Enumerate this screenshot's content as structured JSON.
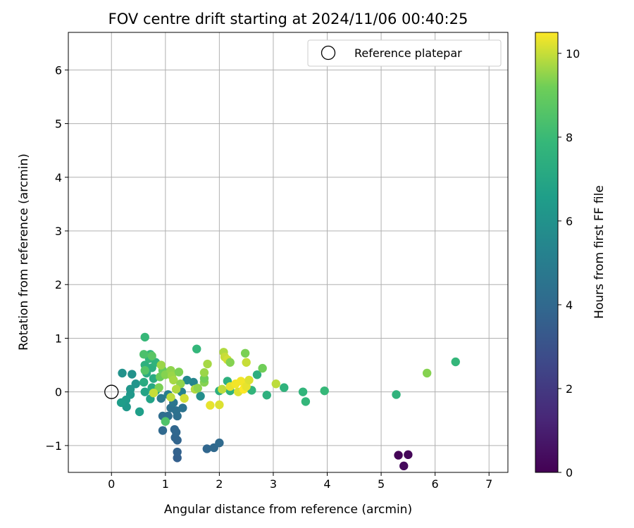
{
  "chart_data": {
    "type": "scatter",
    "title": "FOV centre drift starting at 2024/11/06 00:40:25",
    "xlabel": "Angular distance from reference (arcmin)",
    "ylabel": "Rotation from reference (arcmin)",
    "xlim": [
      -0.8,
      7.35
    ],
    "ylim": [
      -1.5,
      6.7
    ],
    "x_ticks": [
      0,
      1,
      2,
      3,
      4,
      5,
      6,
      7
    ],
    "y_ticks": [
      -1,
      0,
      1,
      2,
      3,
      4,
      5,
      6
    ],
    "grid": true,
    "legend": {
      "position": "top-right",
      "entries": [
        "Reference platepar"
      ]
    },
    "reference_point": {
      "label": "Reference platepar",
      "x": 0,
      "y": 0
    },
    "colorbar": {
      "label": "Hours from first FF file",
      "range": [
        0,
        10.5
      ],
      "ticks": [
        0,
        2,
        4,
        6,
        8,
        10
      ],
      "colormap": "viridis"
    },
    "points": [
      {
        "x": 5.32,
        "y": -1.18,
        "h": 0.1
      },
      {
        "x": 5.5,
        "y": -1.17,
        "h": 0.2
      },
      {
        "x": 5.42,
        "y": -1.38,
        "h": 0.3
      },
      {
        "x": 1.22,
        "y": -1.23,
        "h": 3.6
      },
      {
        "x": 1.22,
        "y": -1.12,
        "h": 3.7
      },
      {
        "x": 1.22,
        "y": -0.9,
        "h": 3.8
      },
      {
        "x": 1.18,
        "y": -0.85,
        "h": 3.8
      },
      {
        "x": 1.17,
        "y": -0.7,
        "h": 3.9
      },
      {
        "x": 1.2,
        "y": -0.75,
        "h": 3.9
      },
      {
        "x": 0.95,
        "y": -0.72,
        "h": 4.0
      },
      {
        "x": 1.77,
        "y": -1.06,
        "h": 3.9
      },
      {
        "x": 1.9,
        "y": -1.04,
        "h": 4.0
      },
      {
        "x": 2.0,
        "y": -0.95,
        "h": 4.1
      },
      {
        "x": 0.95,
        "y": -0.45,
        "h": 4.2
      },
      {
        "x": 1.05,
        "y": -0.45,
        "h": 4.2
      },
      {
        "x": 1.22,
        "y": -0.45,
        "h": 4.3
      },
      {
        "x": 1.1,
        "y": -0.3,
        "h": 4.4
      },
      {
        "x": 1.2,
        "y": -0.35,
        "h": 4.4
      },
      {
        "x": 1.32,
        "y": -0.3,
        "h": 4.5
      },
      {
        "x": 1.15,
        "y": -0.2,
        "h": 4.6
      },
      {
        "x": 0.92,
        "y": -0.12,
        "h": 4.8
      },
      {
        "x": 1.05,
        "y": -0.05,
        "h": 5.0
      },
      {
        "x": 1.3,
        "y": 0.0,
        "h": 5.2
      },
      {
        "x": 1.52,
        "y": 0.18,
        "h": 5.4
      },
      {
        "x": 1.4,
        "y": 0.22,
        "h": 5.6
      },
      {
        "x": 1.65,
        "y": -0.08,
        "h": 5.8
      },
      {
        "x": 0.2,
        "y": 0.35,
        "h": 6.0
      },
      {
        "x": 0.38,
        "y": 0.33,
        "h": 6.0
      },
      {
        "x": 0.45,
        "y": 0.15,
        "h": 6.1
      },
      {
        "x": 0.35,
        "y": 0.05,
        "h": 6.2
      },
      {
        "x": 0.35,
        "y": -0.05,
        "h": 6.3
      },
      {
        "x": 0.27,
        "y": -0.15,
        "h": 6.4
      },
      {
        "x": 0.28,
        "y": -0.28,
        "h": 6.3
      },
      {
        "x": 0.18,
        "y": -0.2,
        "h": 6.5
      },
      {
        "x": 0.52,
        "y": -0.37,
        "h": 6.6
      },
      {
        "x": 0.72,
        "y": -0.13,
        "h": 6.8
      },
      {
        "x": 0.62,
        "y": 0.0,
        "h": 6.9
      },
      {
        "x": 0.82,
        "y": 0.02,
        "h": 7.0
      },
      {
        "x": 0.75,
        "y": 0.08,
        "h": 7.1
      },
      {
        "x": 0.6,
        "y": 0.18,
        "h": 7.2
      },
      {
        "x": 0.78,
        "y": 0.25,
        "h": 7.2
      },
      {
        "x": 0.65,
        "y": 0.35,
        "h": 7.3
      },
      {
        "x": 0.75,
        "y": 0.45,
        "h": 7.4
      },
      {
        "x": 0.62,
        "y": 0.5,
        "h": 7.5
      },
      {
        "x": 0.82,
        "y": 0.55,
        "h": 7.6
      },
      {
        "x": 0.7,
        "y": 0.62,
        "h": 7.7
      },
      {
        "x": 0.72,
        "y": 0.7,
        "h": 7.8
      },
      {
        "x": 0.62,
        "y": 1.02,
        "h": 7.9
      },
      {
        "x": 1.58,
        "y": 0.8,
        "h": 7.8
      },
      {
        "x": 2.0,
        "y": 0.02,
        "h": 7.4
      },
      {
        "x": 2.15,
        "y": 0.2,
        "h": 7.5
      },
      {
        "x": 2.2,
        "y": 0.02,
        "h": 7.6
      },
      {
        "x": 2.7,
        "y": 0.32,
        "h": 7.4
      },
      {
        "x": 2.88,
        "y": -0.06,
        "h": 7.5
      },
      {
        "x": 2.6,
        "y": 0.03,
        "h": 7.7
      },
      {
        "x": 3.2,
        "y": 0.08,
        "h": 7.6
      },
      {
        "x": 3.55,
        "y": 0.0,
        "h": 7.7
      },
      {
        "x": 3.6,
        "y": -0.18,
        "h": 7.8
      },
      {
        "x": 3.95,
        "y": 0.02,
        "h": 7.9
      },
      {
        "x": 5.28,
        "y": -0.05,
        "h": 7.6
      },
      {
        "x": 6.38,
        "y": 0.56,
        "h": 7.8
      },
      {
        "x": 1.0,
        "y": -0.55,
        "h": 8.5
      },
      {
        "x": 0.6,
        "y": 0.7,
        "h": 8.4
      },
      {
        "x": 0.62,
        "y": 0.4,
        "h": 8.6
      },
      {
        "x": 0.75,
        "y": 0.67,
        "h": 8.7
      },
      {
        "x": 0.95,
        "y": 0.4,
        "h": 9.0
      },
      {
        "x": 0.9,
        "y": 0.28,
        "h": 9.1
      },
      {
        "x": 0.88,
        "y": 0.08,
        "h": 9.3
      },
      {
        "x": 1.0,
        "y": 0.32,
        "h": 9.4
      },
      {
        "x": 1.1,
        "y": 0.4,
        "h": 9.5
      },
      {
        "x": 1.12,
        "y": 0.3,
        "h": 9.6
      },
      {
        "x": 1.15,
        "y": 0.22,
        "h": 9.7
      },
      {
        "x": 1.25,
        "y": 0.37,
        "h": 9.3
      },
      {
        "x": 1.28,
        "y": 0.15,
        "h": 9.5
      },
      {
        "x": 1.2,
        "y": 0.05,
        "h": 9.8
      },
      {
        "x": 1.1,
        "y": -0.1,
        "h": 9.9
      },
      {
        "x": 0.92,
        "y": 0.5,
        "h": 9.6
      },
      {
        "x": 0.78,
        "y": -0.02,
        "h": 10.0
      },
      {
        "x": 1.35,
        "y": -0.12,
        "h": 10.1
      },
      {
        "x": 1.55,
        "y": 0.05,
        "h": 9.8
      },
      {
        "x": 1.6,
        "y": 0.07,
        "h": 9.5
      },
      {
        "x": 1.72,
        "y": 0.18,
        "h": 9.4
      },
      {
        "x": 1.72,
        "y": 0.25,
        "h": 9.2
      },
      {
        "x": 1.72,
        "y": 0.36,
        "h": 9.6
      },
      {
        "x": 1.78,
        "y": 0.52,
        "h": 9.7
      },
      {
        "x": 1.83,
        "y": -0.25,
        "h": 10.3
      },
      {
        "x": 2.0,
        "y": -0.24,
        "h": 10.2
      },
      {
        "x": 2.05,
        "y": 0.05,
        "h": 9.9
      },
      {
        "x": 2.08,
        "y": 0.74,
        "h": 9.8
      },
      {
        "x": 2.1,
        "y": 0.65,
        "h": 10.0
      },
      {
        "x": 2.15,
        "y": 0.6,
        "h": 10.1
      },
      {
        "x": 2.2,
        "y": 0.55,
        "h": 9.4
      },
      {
        "x": 2.2,
        "y": 0.1,
        "h": 10.3
      },
      {
        "x": 2.3,
        "y": 0.15,
        "h": 10.4
      },
      {
        "x": 2.35,
        "y": 0.0,
        "h": 10.2
      },
      {
        "x": 2.4,
        "y": 0.2,
        "h": 10.4
      },
      {
        "x": 2.45,
        "y": 0.05,
        "h": 10.5
      },
      {
        "x": 2.5,
        "y": 0.1,
        "h": 10.3
      },
      {
        "x": 2.55,
        "y": 0.22,
        "h": 10.2
      },
      {
        "x": 2.48,
        "y": 0.72,
        "h": 9.3
      },
      {
        "x": 2.5,
        "y": 0.55,
        "h": 10.0
      },
      {
        "x": 2.8,
        "y": 0.44,
        "h": 9.2
      },
      {
        "x": 3.05,
        "y": 0.15,
        "h": 9.9
      },
      {
        "x": 5.85,
        "y": 0.35,
        "h": 9.4
      }
    ]
  }
}
